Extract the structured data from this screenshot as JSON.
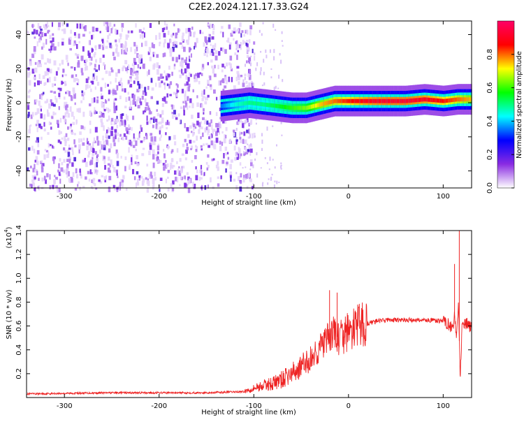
{
  "title": "C2E2.2024.121.17.33.G24",
  "chart_data": [
    {
      "type": "heatmap",
      "xlabel": "Height of straight line (km)",
      "ylabel": "Frequency (Hz)",
      "xlim": [
        -340,
        130
      ],
      "ylim": [
        -50,
        48
      ],
      "x_ticks": [
        -300,
        -200,
        -100,
        0,
        100
      ],
      "y_ticks": [
        -40,
        -20,
        0,
        20,
        40
      ],
      "colorbar": {
        "label": "Normalized spectral amplitude",
        "range": [
          0,
          1
        ],
        "ticks": [
          0.0,
          0.2,
          0.4,
          0.6,
          0.8
        ],
        "colors": [
          "#ffffff",
          "#8a2be2",
          "#0000ff",
          "#00ffff",
          "#00ff00",
          "#ffff00",
          "#ff0000",
          "#ff0066"
        ]
      },
      "noise_region_x": [
        -340,
        -120
      ],
      "ridge": {
        "x": [
          -135,
          -120,
          -105,
          -90,
          -75,
          -60,
          -45,
          -30,
          -15,
          0,
          20,
          40,
          60,
          80,
          100,
          115,
          130
        ],
        "frequency": [
          -2,
          -1,
          0,
          -1,
          -2,
          -3,
          -3,
          -1,
          1,
          1,
          1,
          1,
          1,
          2,
          1,
          2,
          2
        ],
        "amplitude": [
          0.35,
          0.45,
          0.5,
          0.5,
          0.55,
          0.6,
          0.65,
          0.75,
          0.8,
          0.85,
          0.9,
          0.92,
          0.92,
          0.9,
          0.85,
          0.8,
          0.75
        ]
      }
    },
    {
      "type": "line",
      "xlabel": "Height of straight line (km)",
      "ylabel": "SNR (10 * v/v)",
      "y_multiplier": "(x10",
      "y_multiplier_exp": "4",
      "y_multiplier_close": ")",
      "xlim": [
        -340,
        130
      ],
      "ylim": [
        0,
        1.4
      ],
      "x_ticks": [
        -300,
        -200,
        -100,
        0,
        100
      ],
      "y_ticks": [
        0.2,
        0.4,
        0.6,
        0.8,
        1.0,
        1.2,
        1.4
      ],
      "line_color": "#ee2222",
      "series": [
        {
          "x": [
            -340,
            -300,
            -250,
            -200,
            -150,
            -110,
            -100,
            -90,
            -80,
            -70,
            -60,
            -50,
            -40,
            -30,
            -20,
            -15,
            -10,
            -5,
            0,
            10,
            20,
            30,
            40,
            60,
            80,
            100,
            105,
            110,
            112,
            114,
            116,
            118,
            120,
            125,
            130
          ],
          "values": [
            0.03,
            0.035,
            0.04,
            0.04,
            0.04,
            0.05,
            0.08,
            0.1,
            0.12,
            0.15,
            0.2,
            0.26,
            0.32,
            0.42,
            0.5,
            0.55,
            0.48,
            0.52,
            0.55,
            0.6,
            0.62,
            0.64,
            0.65,
            0.65,
            0.65,
            0.64,
            0.62,
            0.58,
            0.7,
            0.5,
            0.8,
            0.15,
            0.6,
            0.62,
            0.58
          ]
        }
      ],
      "peaks": [
        {
          "x": -20,
          "y": 0.9
        },
        {
          "x": -12,
          "y": 0.88
        },
        {
          "x": 112,
          "y": 1.12
        },
        {
          "x": 117,
          "y": 1.42
        }
      ]
    }
  ]
}
